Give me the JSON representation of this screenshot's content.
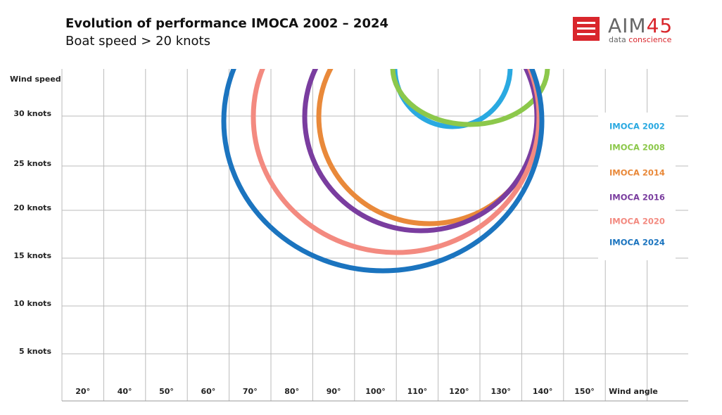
{
  "header": {
    "title": "Evolution of performance IMOCA 2002 – 2024",
    "subtitle": "Boat speed > 20 knots"
  },
  "logo": {
    "brand": "AIM",
    "brand_number": "45",
    "tagline_1": "data",
    "tagline_2": "conscience"
  },
  "y_axis": {
    "title": "Wind speed",
    "labels": [
      "30 knots",
      "25 knots",
      "20 knots",
      "15 knots",
      "10 knots",
      "5 knots"
    ]
  },
  "x_axis": {
    "labels": [
      "20°",
      "40°",
      "50°",
      "60°",
      "70°",
      "80°",
      "90°",
      "100°",
      "110°",
      "120°",
      "130°",
      "140°",
      "150°"
    ],
    "title": "Wind angle"
  },
  "legend": [
    {
      "name": "IMOCA 2002",
      "color": "#2aa9e1"
    },
    {
      "name": "IMOCA 2008",
      "color": "#8cc84b"
    },
    {
      "name": "IMOCA 2014",
      "color": "#e9893a"
    },
    {
      "name": "IMOCA 2016",
      "color": "#7a3d9f"
    },
    {
      "name": "IMOCA 2020",
      "color": "#f38a80"
    },
    {
      "name": "IMOCA 2024",
      "color": "#1b74bf"
    }
  ]
}
